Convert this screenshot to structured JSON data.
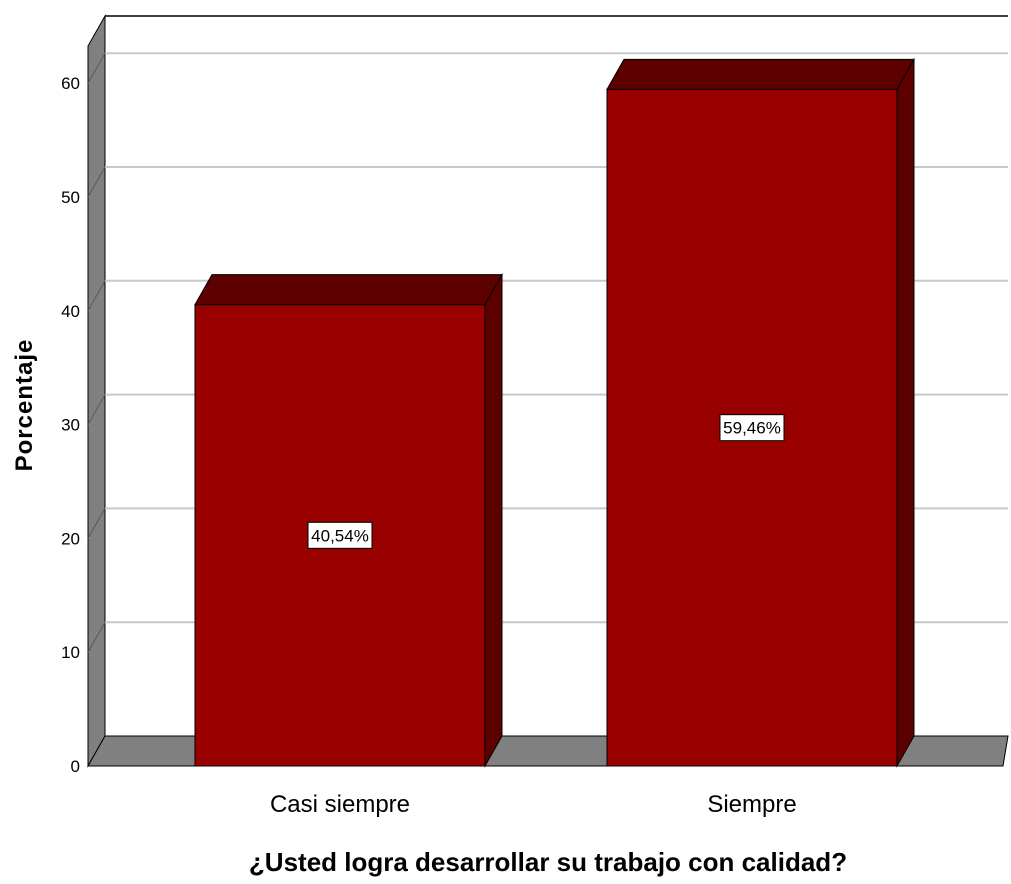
{
  "chart_data": {
    "type": "bar",
    "categories": [
      "Casi siempre",
      "Siempre"
    ],
    "values": [
      40.54,
      59.46
    ],
    "data_labels": [
      "40,54%",
      "59,46%"
    ],
    "title": "",
    "xlabel": "¿Usted logra desarrollar su trabajo con calidad?",
    "ylabel": "Porcentaje",
    "ylim": [
      0,
      63
    ],
    "yticks": [
      0,
      10,
      20,
      30,
      40,
      50,
      60
    ],
    "ytick_labels": [
      "0",
      "10",
      "20",
      "30",
      "40",
      "50",
      "60"
    ],
    "grid": true,
    "legend": "none",
    "style": "3d",
    "colors": {
      "bar_front": "#990000",
      "bar_top": "#5c0000",
      "bar_side": "#5c0000",
      "wall_side": "#808080",
      "floor": "#808080",
      "gridline": "#c8c8c8",
      "background": "#ffffff"
    }
  }
}
